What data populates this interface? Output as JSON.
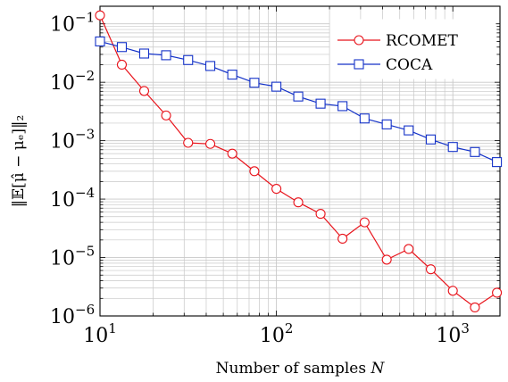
{
  "chart_data": {
    "type": "line",
    "title": "",
    "xlabel": "Number of samples N",
    "ylabel": "‖𝔼[μ̂ − μₑ]‖₂",
    "xscale": "log",
    "yscale": "log",
    "xlim": [
      10,
      1850
    ],
    "ylim": [
      1e-06,
      0.2
    ],
    "grid": true,
    "legend": "top-right",
    "x_ticks": [
      {
        "value": 10,
        "base": "10",
        "exp": "1"
      },
      {
        "value": 100,
        "base": "10",
        "exp": "2"
      },
      {
        "value": 1000,
        "base": "10",
        "exp": "3"
      }
    ],
    "y_ticks": [
      {
        "value": 0.1,
        "base": "10",
        "exp": "−1"
      },
      {
        "value": 0.01,
        "base": "10",
        "exp": "−2"
      },
      {
        "value": 0.001,
        "base": "10",
        "exp": "−3"
      },
      {
        "value": 0.0001,
        "base": "10",
        "exp": "−4"
      },
      {
        "value": 1e-05,
        "base": "10",
        "exp": "−5"
      },
      {
        "value": 1e-06,
        "base": "10",
        "exp": "−6"
      }
    ],
    "x": [
      10,
      13.3,
      17.8,
      23.7,
      31.6,
      42.2,
      56.2,
      75,
      100,
      133,
      178,
      237,
      316,
      422,
      562,
      750,
      1000,
      1334,
      1778
    ],
    "series": [
      {
        "name": "RCOMET",
        "color": "#e8141c",
        "marker": "circle",
        "values": [
          0.14,
          0.02,
          0.0071,
          0.0027,
          0.00092,
          0.00088,
          0.0006,
          0.0003,
          0.00015,
          8.8e-05,
          5.6e-05,
          2.1e-05,
          4e-05,
          9.2e-06,
          1.4e-05,
          6.3e-06,
          2.7e-06,
          1.4e-06,
          2.5e-06
        ]
      },
      {
        "name": "COCA",
        "color": "#1432c8",
        "marker": "square",
        "values": [
          0.05,
          0.04,
          0.031,
          0.029,
          0.024,
          0.019,
          0.0135,
          0.0098,
          0.0084,
          0.0057,
          0.0043,
          0.0039,
          0.0024,
          0.0019,
          0.0015,
          0.00105,
          0.00078,
          0.00064,
          0.00043
        ]
      }
    ]
  }
}
